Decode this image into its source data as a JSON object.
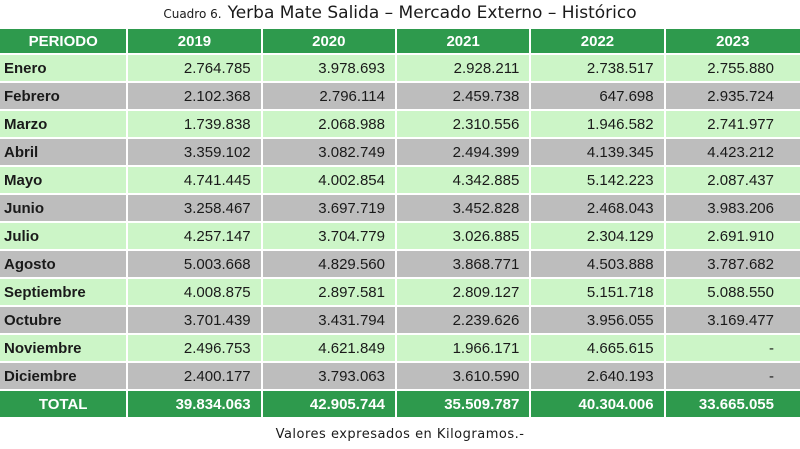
{
  "caption": {
    "label": "Cuadro 6.",
    "title": "Yerba Mate Salida  – Mercado Externo – Histórico"
  },
  "headers": [
    "PERIODO",
    "2019",
    "2020",
    "2021",
    "2022",
    "2023"
  ],
  "rows": [
    {
      "mes": "Enero",
      "vals": [
        "2.764.785",
        "3.978.693",
        "2.928.211",
        "2.738.517",
        "2.755.880"
      ]
    },
    {
      "mes": "Febrero",
      "vals": [
        "2.102.368",
        "2.796.114",
        "2.459.738",
        "647.698",
        "2.935.724"
      ]
    },
    {
      "mes": "Marzo",
      "vals": [
        "1.739.838",
        "2.068.988",
        "2.310.556",
        "1.946.582",
        "2.741.977"
      ]
    },
    {
      "mes": "Abril",
      "vals": [
        "3.359.102",
        "3.082.749",
        "2.494.399",
        "4.139.345",
        "4.423.212"
      ]
    },
    {
      "mes": "Mayo",
      "vals": [
        "4.741.445",
        "4.002.854",
        "4.342.885",
        "5.142.223",
        "2.087.437"
      ]
    },
    {
      "mes": "Junio",
      "vals": [
        "3.258.467",
        "3.697.719",
        "3.452.828",
        "2.468.043",
        "3.983.206"
      ]
    },
    {
      "mes": "Julio",
      "vals": [
        "4.257.147",
        "3.704.779",
        "3.026.885",
        "2.304.129",
        "2.691.910"
      ]
    },
    {
      "mes": "Agosto",
      "vals": [
        "5.003.668",
        "4.829.560",
        "3.868.771",
        "4.503.888",
        "3.787.682"
      ]
    },
    {
      "mes": "Septiembre",
      "vals": [
        "4.008.875",
        "2.897.581",
        "2.809.127",
        "5.151.718",
        "5.088.550"
      ]
    },
    {
      "mes": "Octubre",
      "vals": [
        "3.701.439",
        "3.431.794",
        "2.239.626",
        "3.956.055",
        "3.169.477"
      ]
    },
    {
      "mes": "Noviembre",
      "vals": [
        "2.496.753",
        "4.621.849",
        "1.966.171",
        "4.665.615",
        "-"
      ]
    },
    {
      "mes": "Diciembre",
      "vals": [
        "2.400.177",
        "3.793.063",
        "3.610.590",
        "2.640.193",
        "-"
      ]
    }
  ],
  "total": {
    "mes": "TOTAL",
    "vals": [
      "39.834.063",
      "42.905.744",
      "35.509.787",
      "40.304.006",
      "33.665.055"
    ]
  },
  "footer": "Valores expresados en Kilogramos.-",
  "colors": {
    "header_green": "#2e9a4d",
    "row_light": "#ccf5c7",
    "row_dark": "#bdbdbd"
  }
}
